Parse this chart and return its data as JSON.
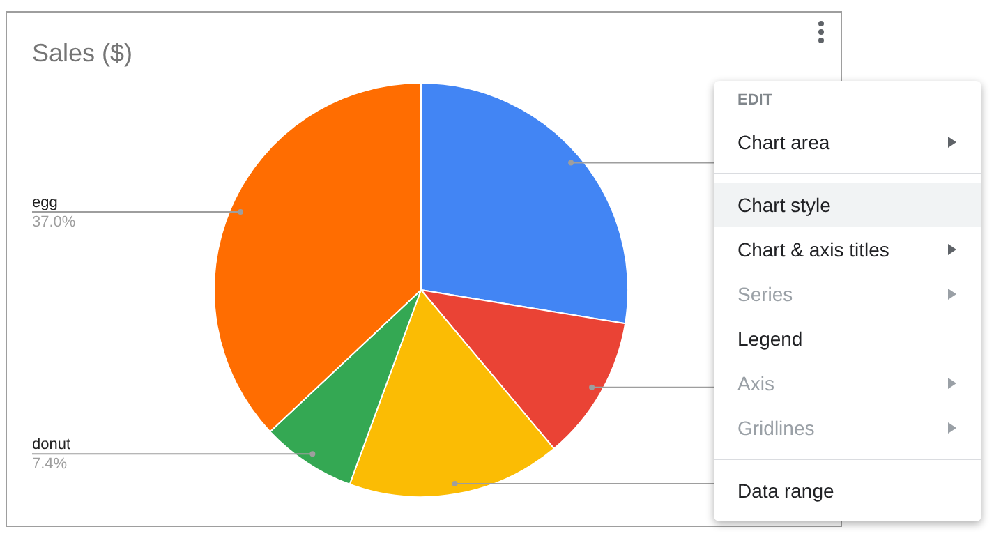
{
  "chart_data": {
    "type": "pie",
    "title": "Sales ($)",
    "categories": [
      null,
      null,
      null,
      "donut",
      "egg"
    ],
    "values": [
      27.6,
      11.3,
      16.7,
      7.4,
      37.0
    ],
    "colors": [
      "#4285f4",
      "#ea4335",
      "#fbbc04",
      "#34a853",
      "#ff6d01"
    ],
    "value_labels": [
      null,
      null,
      null,
      "7.4%",
      "37.0%"
    ],
    "legend": false,
    "annotations": [
      "EDIT",
      "Chart area",
      "Chart style",
      "Chart & axis titles",
      "Series",
      "Legend",
      "Axis",
      "Gridlines",
      "Data range"
    ]
  }
}
